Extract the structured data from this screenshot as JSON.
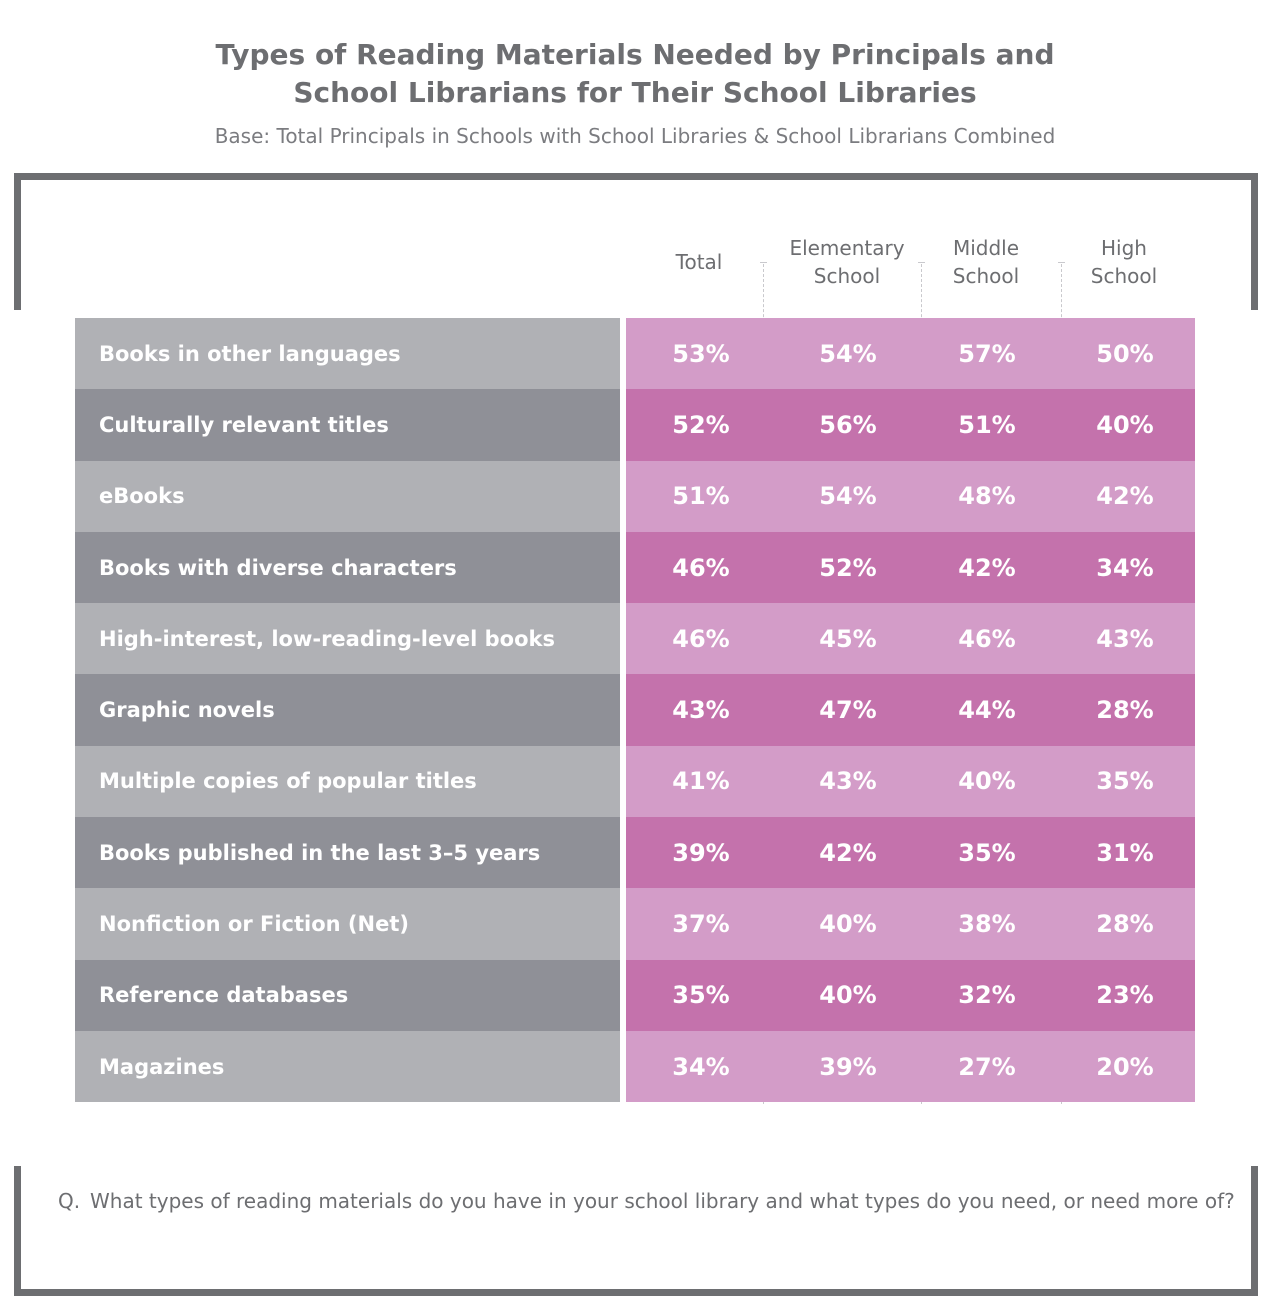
{
  "title_line1": "Types of Reading Materials Needed by Principals and",
  "title_line2": "School Librarians for Their School Libraries",
  "subtitle": "Base: Total Principals in Schools with School Libraries & School Librarians Combined",
  "question": {
    "prefix": "Q.",
    "text": "What types of reading materials do you have in your school library and what types do you need, or need more of?"
  },
  "colors": {
    "label_light": "#b0b1b5",
    "label_dark": "#8f9097",
    "value_light": "#d39cc8",
    "value_dark": "#c472ac"
  },
  "chart_data": {
    "type": "table",
    "title": "Types of Reading Materials Needed by Principals and School Librarians for Their School Libraries",
    "subtitle": "Base: Total Principals in Schools with School Libraries & School Librarians Combined",
    "columns": [
      "Total",
      "Elementary\nSchool",
      "Middle\nSchool",
      "High\nSchool"
    ],
    "rows": [
      {
        "label": "Books in other languages",
        "values": [
          "53%",
          "54%",
          "57%",
          "50%"
        ]
      },
      {
        "label": "Culturally relevant titles",
        "values": [
          "52%",
          "56%",
          "51%",
          "40%"
        ]
      },
      {
        "label": "eBooks",
        "values": [
          "51%",
          "54%",
          "48%",
          "42%"
        ]
      },
      {
        "label": "Books with diverse characters",
        "values": [
          "46%",
          "52%",
          "42%",
          "34%"
        ]
      },
      {
        "label": "High-interest, low-reading-level books",
        "values": [
          "46%",
          "45%",
          "46%",
          "43%"
        ]
      },
      {
        "label": "Graphic novels",
        "values": [
          "43%",
          "47%",
          "44%",
          "28%"
        ]
      },
      {
        "label": "Multiple copies of popular titles",
        "values": [
          "41%",
          "43%",
          "40%",
          "35%"
        ]
      },
      {
        "label": "Books published in the last 3–5 years",
        "values": [
          "39%",
          "42%",
          "35%",
          "31%"
        ]
      },
      {
        "label": "Nonfiction or Fiction (Net)",
        "values": [
          "37%",
          "40%",
          "38%",
          "28%"
        ]
      },
      {
        "label": "Reference databases",
        "values": [
          "35%",
          "40%",
          "32%",
          "23%"
        ]
      },
      {
        "label": "Magazines",
        "values": [
          "34%",
          "39%",
          "27%",
          "20%"
        ]
      }
    ]
  }
}
